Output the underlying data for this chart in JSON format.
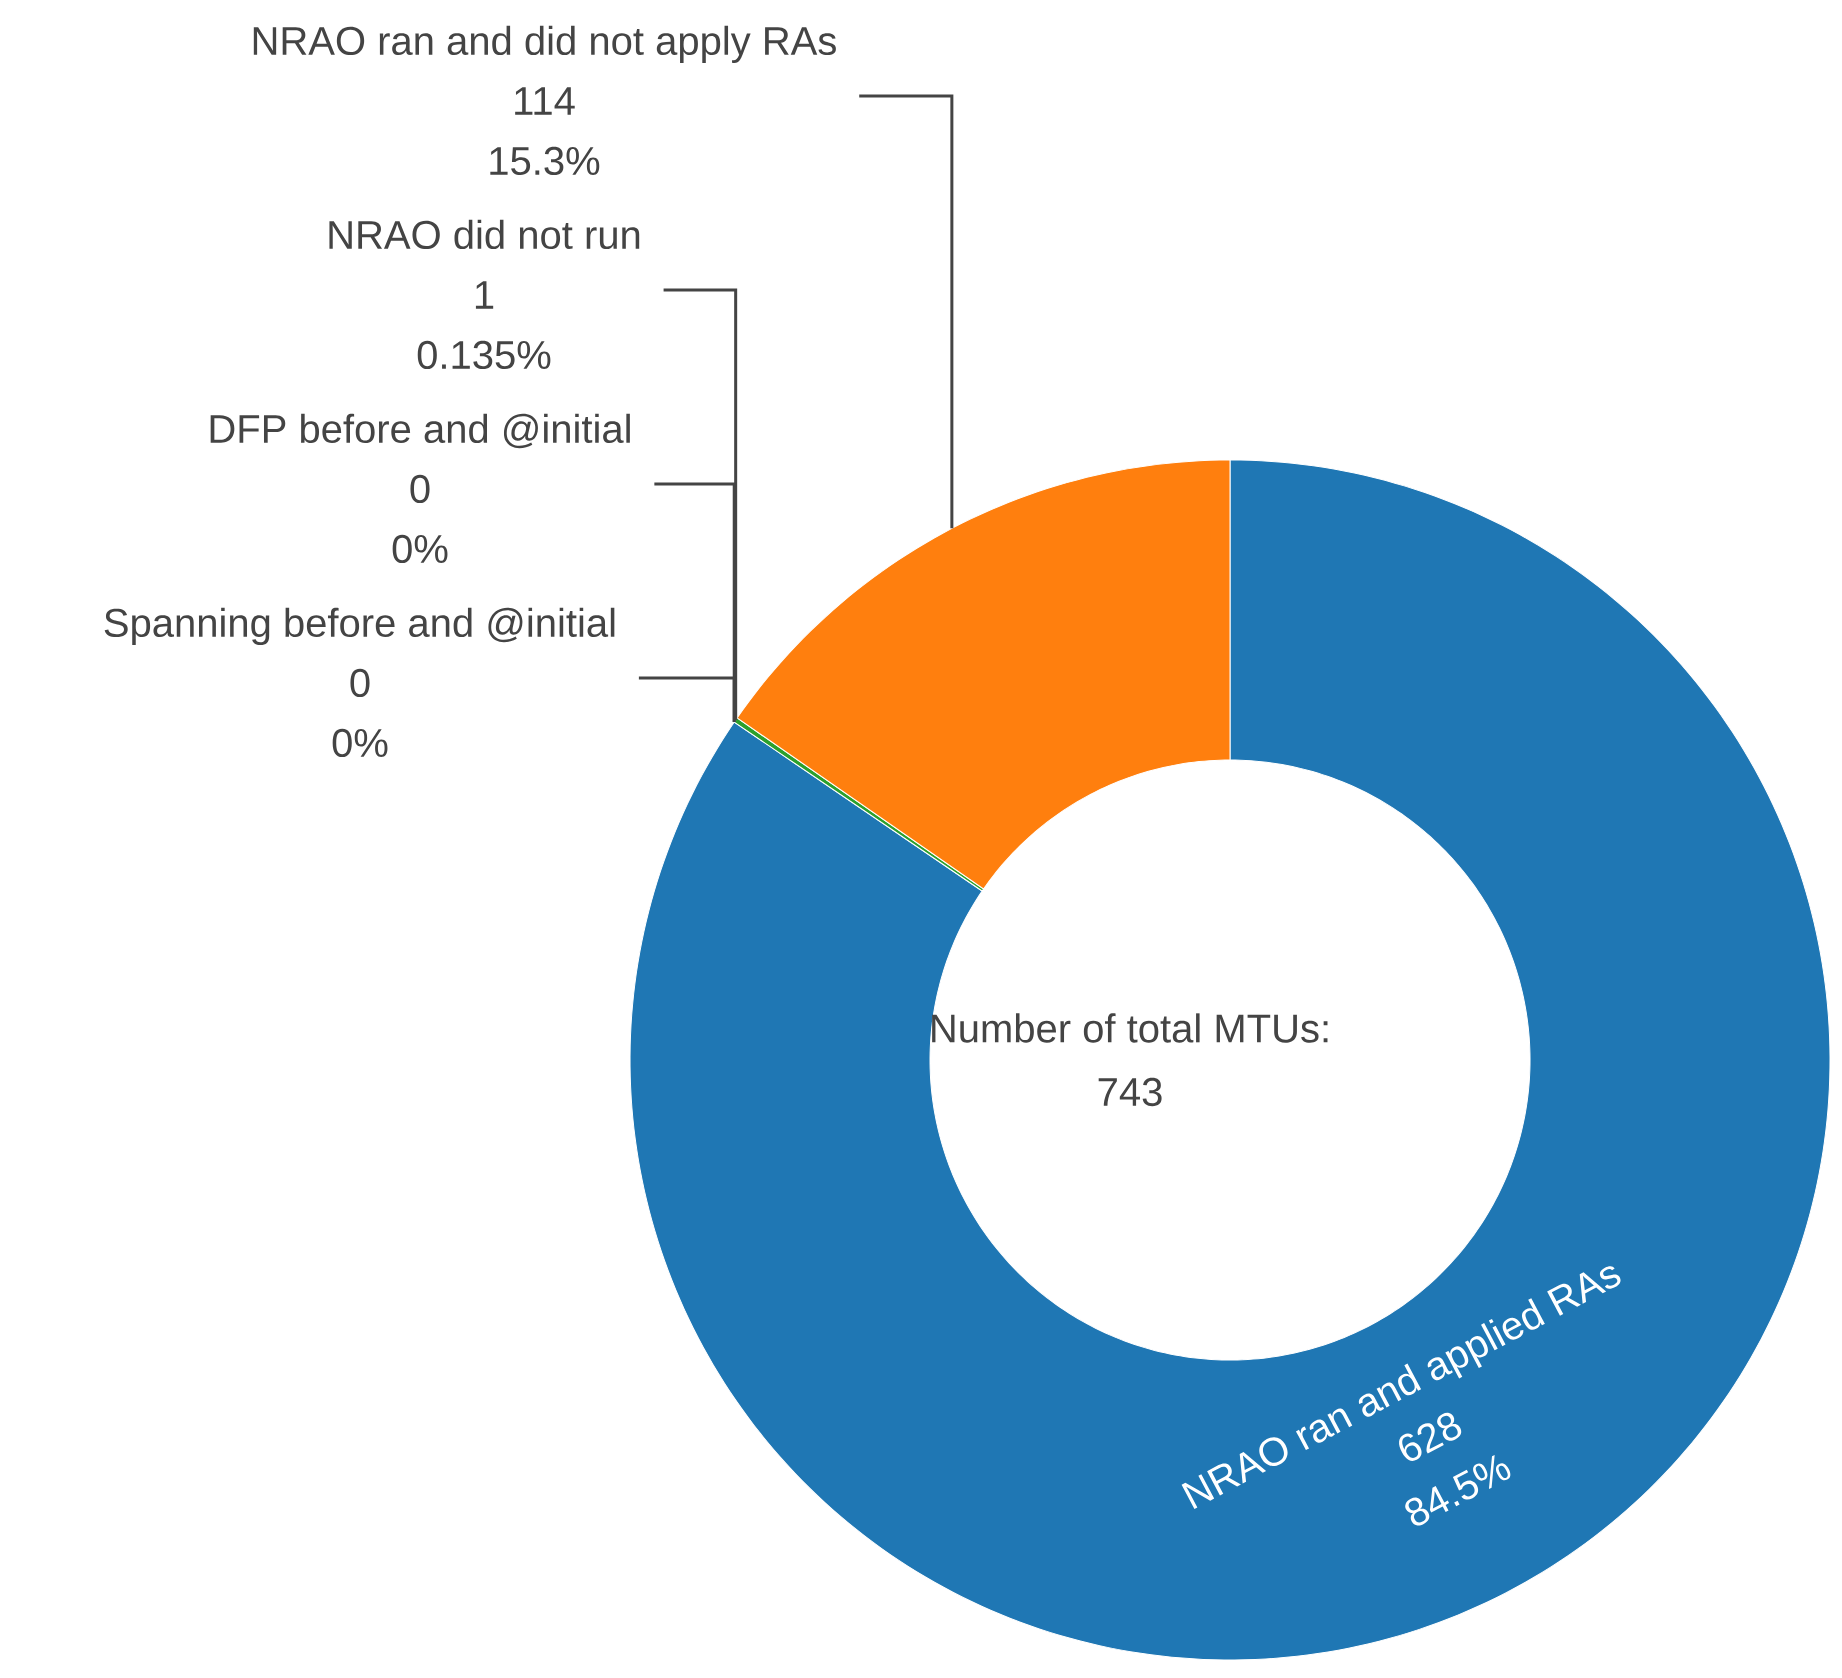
{
  "chart_data": {
    "type": "donut",
    "categories": [
      "NRAO ran and applied RAs",
      "Spanning before and @initial",
      "DFP before and @initial",
      "NRAO did not run",
      "NRAO ran and did not apply RAs"
    ],
    "values": [
      628,
      0,
      0,
      1,
      114
    ],
    "colors": [
      "#1f77b4",
      "#d62728",
      "#9467bd",
      "#2ca02c",
      "#ff7f0e"
    ],
    "value_labels": [
      "628",
      "0",
      "0",
      "1",
      "114"
    ],
    "annotations": [
      {
        "text": "84.5%",
        "x": "NRAO ran and applied RAs"
      },
      {
        "text": "0%",
        "x": "Spanning before and @initial"
      },
      {
        "text": "0%",
        "x": "DFP before and @initial"
      },
      {
        "text": "0.135%",
        "x": "NRAO did not run"
      },
      {
        "text": "15.3%",
        "x": "NRAO ran and did not apply RAs"
      },
      "Number of total MTUs:",
      "743"
    ]
  }
}
